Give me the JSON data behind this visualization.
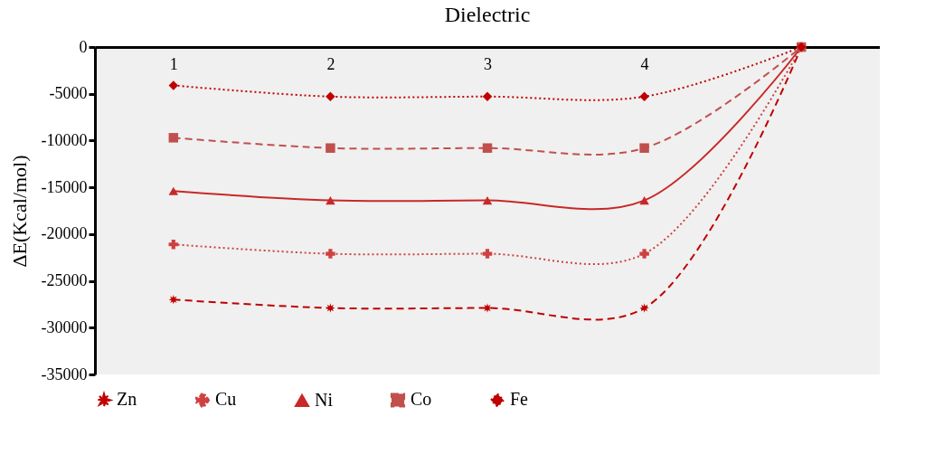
{
  "chart_data": {
    "type": "line",
    "title": "Dielectric",
    "ylabel": "ΔE(Kcal/mol)",
    "categories": [
      "1",
      "2",
      "3",
      "4",
      null
    ],
    "series": [
      {
        "name": "Zn",
        "color": "#c00000",
        "marker": "star",
        "line_style": "dashed",
        "values": [
          -27000,
          -27900,
          -27900,
          -27900,
          0
        ]
      },
      {
        "name": "Cu",
        "color": "#d04040",
        "marker": "cross",
        "line_style": "dotted",
        "values": [
          -21100,
          -22100,
          -22100,
          -22100,
          0
        ]
      },
      {
        "name": "Ni",
        "color": "#c82828",
        "marker": "triangle",
        "line_style": "solid",
        "values": [
          -15400,
          -16400,
          -16400,
          -16400,
          0
        ]
      },
      {
        "name": "Co",
        "color": "#c0504d",
        "marker": "square",
        "line_style": "dashed",
        "values": [
          -9700,
          -10800,
          -10800,
          -10800,
          0
        ]
      },
      {
        "name": "Fe",
        "color": "#c00000",
        "marker": "diamond",
        "line_style": "dotted",
        "values": [
          -4100,
          -5300,
          -5300,
          -5300,
          0
        ]
      }
    ],
    "ylim": [
      -35000,
      0
    ],
    "yticks": [
      -35000,
      -30000,
      -25000,
      -20000,
      -15000,
      -10000,
      -5000,
      0
    ],
    "grid": false,
    "legend": "bottom"
  }
}
